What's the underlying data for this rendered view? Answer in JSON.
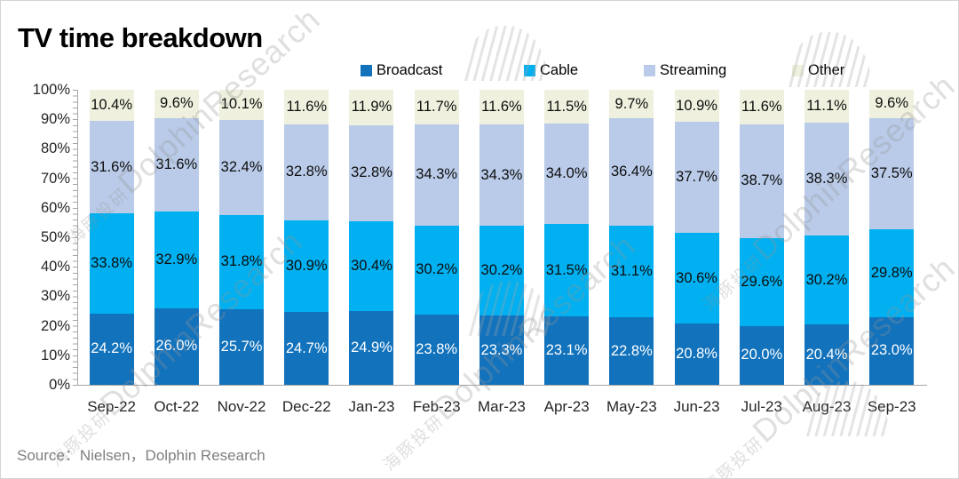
{
  "title": "TV time breakdown",
  "source": "Source：Nielsen，Dolphin Research",
  "watermark": {
    "text_cn": "海豚投研",
    "text_en": "DolphinResearch"
  },
  "legend": [
    {
      "label": "Broadcast",
      "color": "#1272BC"
    },
    {
      "label": "Cable",
      "color": "#00B0F0"
    },
    {
      "label": "Streaming",
      "color": "#B9CBE8"
    },
    {
      "label": "Other",
      "color": "#EFF1DE"
    }
  ],
  "axis_colors": {
    "axis_line": "#a6a6a6",
    "tick_text": "#262626"
  },
  "chart_data": {
    "type": "bar",
    "stacked": true,
    "title": "TV time breakdown",
    "xlabel": "",
    "ylabel": "",
    "ylim": [
      0,
      100
    ],
    "legend_position": "top",
    "grid": false,
    "yticks": [
      "0%",
      "10%",
      "20%",
      "30%",
      "40%",
      "50%",
      "60%",
      "70%",
      "80%",
      "90%",
      "100%"
    ],
    "categories": [
      "Sep-22",
      "Oct-22",
      "Nov-22",
      "Dec-22",
      "Jan-23",
      "Feb-23",
      "Mar-23",
      "Apr-23",
      "May-23",
      "Jun-23",
      "Jul-23",
      "Aug-23",
      "Sep-23"
    ],
    "series": [
      {
        "name": "Broadcast",
        "color": "#1272BC",
        "label_color": "#FFFFFF",
        "values": [
          24.2,
          26.0,
          25.7,
          24.7,
          24.9,
          23.8,
          23.3,
          23.1,
          22.8,
          20.8,
          20.0,
          20.4,
          23.0
        ]
      },
      {
        "name": "Cable",
        "color": "#00B0F0",
        "label_color": "#0d0d0d",
        "values": [
          33.8,
          32.9,
          31.8,
          30.9,
          30.4,
          30.2,
          30.2,
          31.5,
          31.1,
          30.6,
          29.6,
          30.2,
          29.8
        ]
      },
      {
        "name": "Streaming",
        "color": "#B9CBE8",
        "label_color": "#0d0d0d",
        "values": [
          31.6,
          31.6,
          32.4,
          32.8,
          32.8,
          34.3,
          34.3,
          34.0,
          36.4,
          37.7,
          38.7,
          38.3,
          37.5
        ]
      },
      {
        "name": "Other",
        "color": "#EFF1DE",
        "label_color": "#0d0d0d",
        "values": [
          10.4,
          9.6,
          10.1,
          11.6,
          11.9,
          11.7,
          11.6,
          11.5,
          9.7,
          10.9,
          11.6,
          11.1,
          9.6
        ]
      }
    ]
  }
}
